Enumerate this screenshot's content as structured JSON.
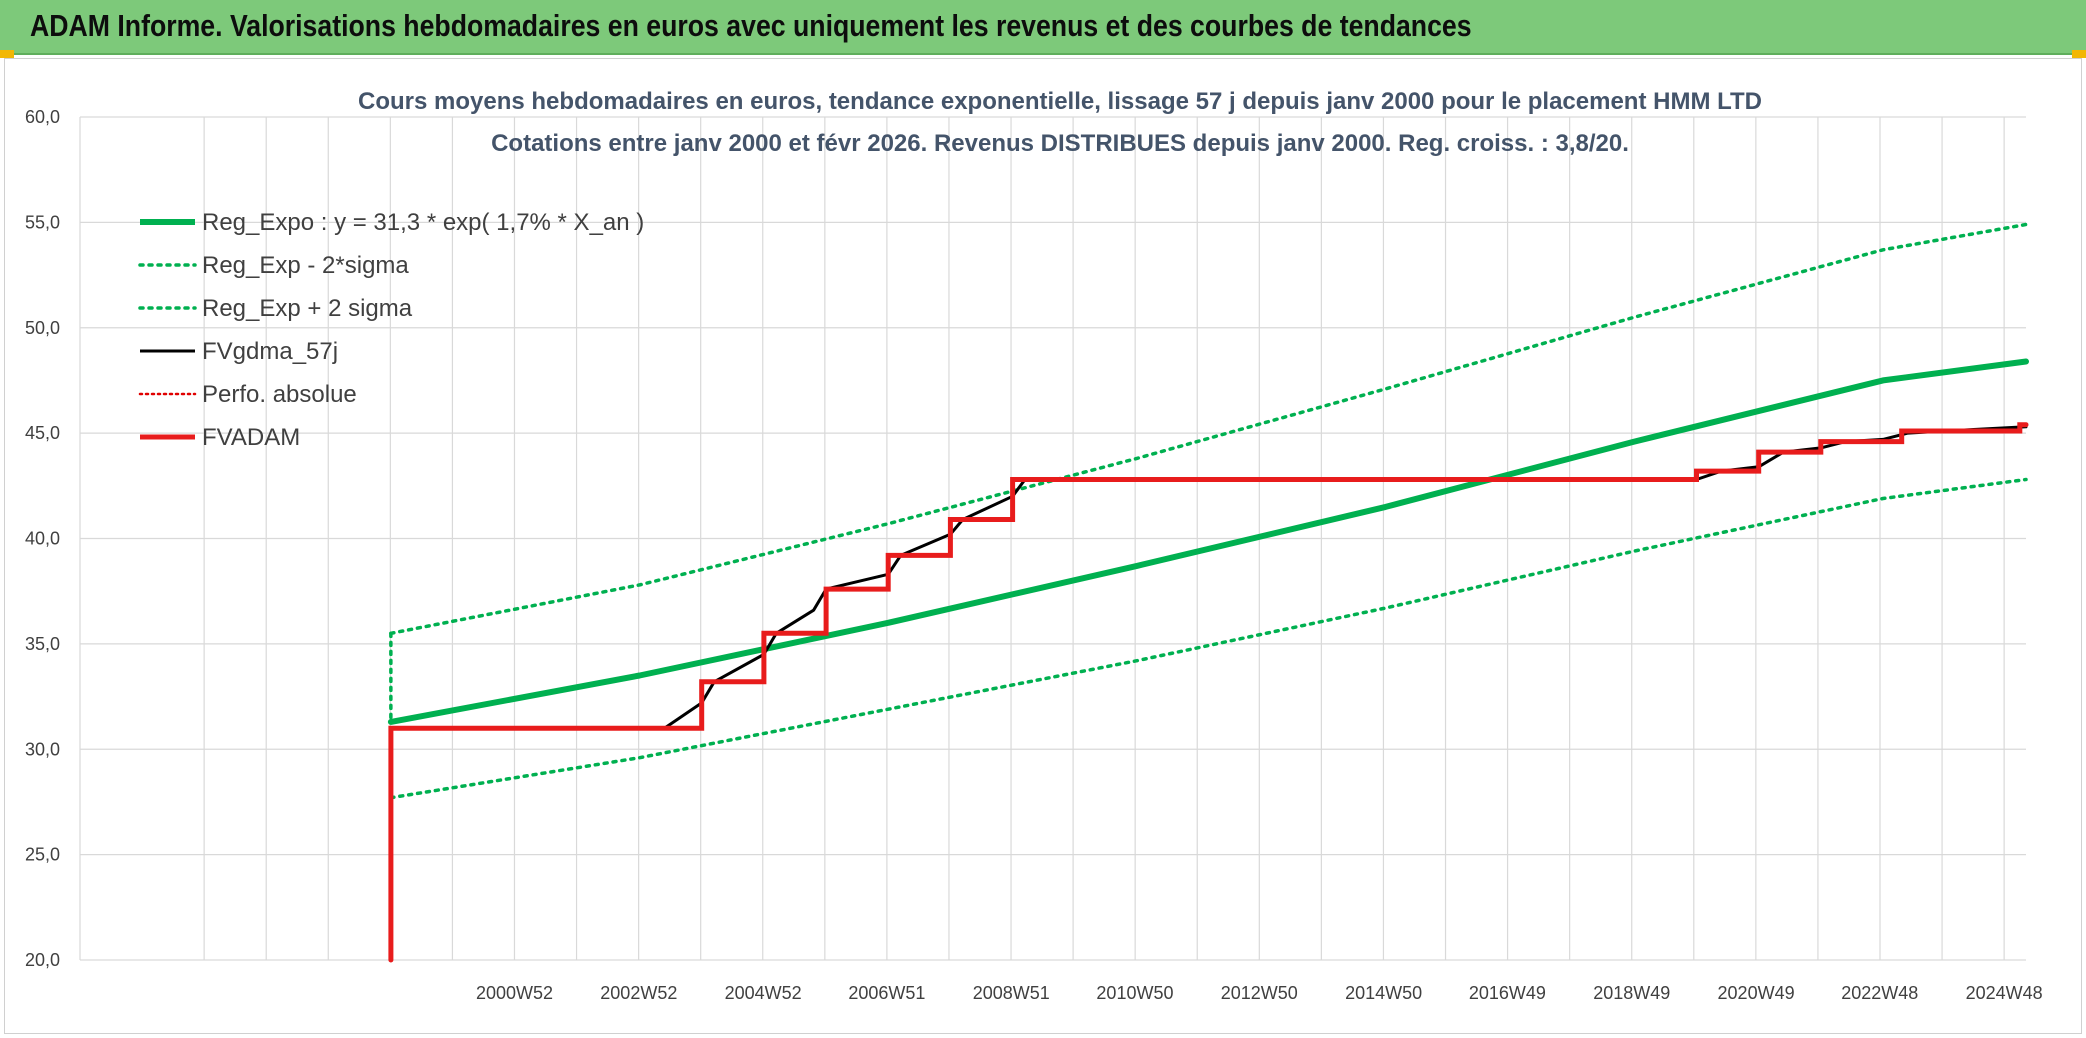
{
  "banner": {
    "title": "ADAM Informe. Valorisations hebdomadaires en euros avec uniquement les revenus et des courbes de tendances"
  },
  "chart_data": {
    "type": "line",
    "title_lines": [
      "Cours moyens hebdomadaires en euros, tendance exponentielle, lissage 57 j depuis janv 2000 pour le placement HMM LTD",
      "Cotations entre janv 2000 et févr 2026. Revenus DISTRIBUES depuis janv 2000. Reg. croiss. : 3,8/20."
    ],
    "x_tick_labels": [
      "2000W52",
      "2002W52",
      "2004W52",
      "2006W51",
      "2008W51",
      "2010W50",
      "2012W50",
      "2014W50",
      "2016W49",
      "2018W49",
      "2020W49",
      "2022W48",
      "2024W48"
    ],
    "x_tick_years": [
      2000.99,
      2002.99,
      2004.99,
      2006.98,
      2008.98,
      2010.97,
      2012.97,
      2014.97,
      2016.96,
      2018.96,
      2020.96,
      2022.95,
      2024.95
    ],
    "xlim": [
      1995.0,
      2026.3
    ],
    "ylim": [
      20,
      60
    ],
    "y_ticks": [
      20,
      25,
      30,
      35,
      40,
      45,
      50,
      55,
      60
    ],
    "y_tick_labels": [
      "20,0",
      "25,0",
      "30,0",
      "35,0",
      "40,0",
      "45,0",
      "50,0",
      "55,0",
      "60,0"
    ],
    "grid": true,
    "legend_position": "top-left",
    "series": [
      {
        "name": "Reg_Expo : y = 31,3 * exp( 1,7% *  X_an )",
        "color": "#00b050",
        "style": "solid-thick",
        "x": [
          2000.0,
          2004.0,
          2008.0,
          2012.0,
          2016.0,
          2020.0,
          2024.0,
          2026.3
        ],
        "y": [
          31.3,
          33.5,
          36.0,
          38.7,
          41.5,
          44.6,
          47.5,
          48.4
        ]
      },
      {
        "name": "Reg_Exp - 2*sigma",
        "color": "#00b050",
        "style": "dotted",
        "x": [
          2000.0,
          2004.0,
          2008.0,
          2012.0,
          2016.0,
          2020.0,
          2024.0,
          2026.3
        ],
        "y": [
          27.7,
          29.6,
          31.9,
          34.2,
          36.7,
          39.4,
          41.9,
          42.8
        ]
      },
      {
        "name": "Reg_Exp + 2 sigma",
        "color": "#00b050",
        "style": "dotted",
        "x": [
          2000.0,
          2004.0,
          2008.0,
          2012.0,
          2016.0,
          2020.0,
          2024.0,
          2026.3
        ],
        "y": [
          35.5,
          37.8,
          40.7,
          43.8,
          47.1,
          50.5,
          53.7,
          54.9
        ]
      },
      {
        "name": "FVgdma_57j",
        "color": "#000000",
        "style": "solid",
        "x": [
          2000.0,
          2004.4,
          2005.0,
          2005.2,
          2006.0,
          2006.2,
          2006.8,
          2007.0,
          2008.0,
          2008.2,
          2009.0,
          2009.2,
          2010.0,
          2010.2,
          2021.0,
          2021.4,
          2022.0,
          2022.4,
          2023.0,
          2023.4,
          2024.0,
          2024.4,
          2025.0,
          2026.3
        ],
        "y": [
          31.0,
          31.0,
          32.2,
          33.2,
          34.5,
          35.5,
          36.6,
          37.6,
          38.3,
          39.2,
          40.2,
          40.9,
          42.0,
          42.8,
          42.8,
          43.2,
          43.4,
          44.1,
          44.3,
          44.6,
          44.7,
          45.0,
          45.1,
          45.3
        ]
      },
      {
        "name": "Perfo. absolue",
        "color": "#e00000",
        "style": "dotted",
        "x": [],
        "y": []
      },
      {
        "name": "FVADAM",
        "color": "#e81c1c",
        "style": "step-thick",
        "x": [
          2000.0,
          2000.0,
          2005.0,
          2005.0,
          2006.0,
          2006.0,
          2007.0,
          2007.0,
          2008.0,
          2008.0,
          2009.0,
          2009.0,
          2010.0,
          2010.0,
          2021.0,
          2021.0,
          2022.0,
          2022.0,
          2023.0,
          2023.0,
          2024.3,
          2024.3,
          2026.2,
          2026.2,
          2026.3
        ],
        "y": [
          20.0,
          31.0,
          31.0,
          33.2,
          33.2,
          35.5,
          35.5,
          37.6,
          37.6,
          39.2,
          39.2,
          40.9,
          40.9,
          42.8,
          42.8,
          43.2,
          43.2,
          44.1,
          44.1,
          44.6,
          44.6,
          45.1,
          45.1,
          45.4,
          45.4
        ]
      }
    ]
  }
}
